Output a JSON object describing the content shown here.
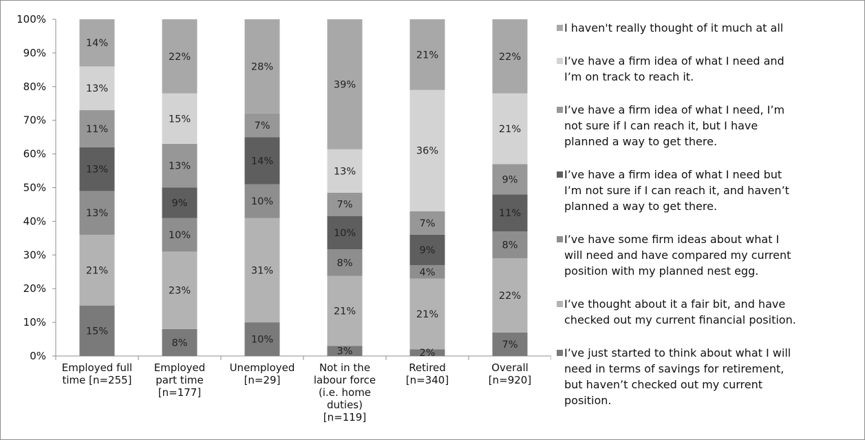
{
  "chart_data": {
    "type": "bar",
    "stacked": true,
    "normalized_percent": true,
    "ylim": [
      0,
      100
    ],
    "y_ticks": [
      "0%",
      "10%",
      "20%",
      "30%",
      "40%",
      "50%",
      "60%",
      "70%",
      "80%",
      "90%",
      "100%"
    ],
    "categories": [
      [
        "Employed full",
        "time [n=255]"
      ],
      [
        "Employed",
        "part time",
        "[n=177]"
      ],
      [
        "Unemployed",
        "[n=29]"
      ],
      [
        "Not in the",
        "labour force",
        "(i.e. home",
        "duties)",
        "[n=119]"
      ],
      [
        "Retired",
        "[n=340]"
      ],
      [
        "Overall",
        "[n=920]"
      ]
    ],
    "series": [
      {
        "name": "I’ve just started to think about what I will need in terms of savings for retirement, but haven’t checked out my current position.",
        "color": "#7a7a7a",
        "values": [
          15,
          8,
          10,
          3,
          2,
          7
        ],
        "labels": [
          "15%",
          "8%",
          "10%",
          "3%",
          "2%",
          "7%"
        ]
      },
      {
        "name": "I’ve thought about it a fair bit, and have checked out my current financial position.",
        "color": "#b3b3b3",
        "values": [
          21,
          23,
          31,
          21,
          21,
          22
        ],
        "labels": [
          "21%",
          "23%",
          "31%",
          "21%",
          "21%",
          "22%"
        ]
      },
      {
        "name": "I’ve have some firm ideas about what I will need and have compared my current position with my planned nest egg.",
        "color": "#8e8e8e",
        "values": [
          13,
          10,
          10,
          8,
          4,
          8
        ],
        "labels": [
          "13%",
          "10%",
          "10%",
          "8%",
          "4%",
          "8%"
        ]
      },
      {
        "name": "I’ve have a firm idea of what I need but I’m not sure if I can reach it, and haven’t planned a way to get there.",
        "color": "#5e5e5e",
        "values": [
          13,
          9,
          14,
          10,
          9,
          11
        ],
        "labels": [
          "13%",
          "9%",
          "14%",
          "10%",
          "9%",
          "11%"
        ]
      },
      {
        "name": "I’ve have a firm idea of what I need, I’m not sure if I can reach it, but I have planned a way to get there.",
        "color": "#979797",
        "values": [
          11,
          13,
          7,
          7,
          7,
          9
        ],
        "labels": [
          "11%",
          "13%",
          "7%",
          "7%",
          "7%",
          "9%"
        ]
      },
      {
        "name": "I’ve have a firm idea of what I need and I’m on track to reach it.",
        "color": "#d3d3d3",
        "values": [
          13,
          15,
          0,
          13,
          36,
          21
        ],
        "labels": [
          "13%",
          "15%",
          "",
          "13%",
          "36%",
          "21%"
        ]
      },
      {
        "name": "I haven't really thought of it much at all",
        "color": "#a8a8a8",
        "values": [
          14,
          22,
          28,
          39,
          21,
          22
        ],
        "labels": [
          "14%",
          "22%",
          "28%",
          "39%",
          "21%",
          "22%"
        ]
      }
    ],
    "legend": {
      "placement": "right",
      "order": [
        6,
        5,
        4,
        3,
        2,
        1,
        0
      ],
      "lines": [
        [
          "I haven't really thought of it much at all"
        ],
        [
          "I’ve have a firm idea of what I need and",
          "I’m on track to reach it."
        ],
        [
          "I’ve have a firm idea of what I need, I’m",
          "not sure if I can reach it, but I have",
          "planned a way to get there."
        ],
        [
          "I’ve have a firm idea of what I need but",
          "I’m not sure if I can reach it, and haven’t",
          "planned a way to get there."
        ],
        [
          "I’ve have some firm ideas about what I",
          "will need and have compared my current",
          "position with my planned nest egg."
        ],
        [
          "I’ve thought about it a fair bit, and have",
          "checked out my current financial position."
        ],
        [
          "I’ve just started to think about what I will",
          "need in terms of savings for retirement,",
          "but haven’t checked out my current",
          "position."
        ]
      ]
    }
  }
}
